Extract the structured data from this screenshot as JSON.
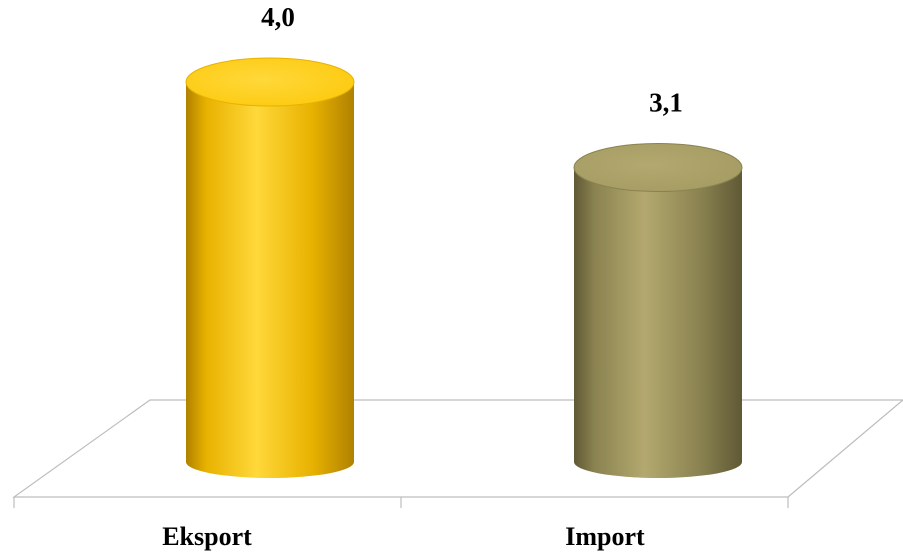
{
  "chart_data": {
    "type": "bar",
    "style": "3d-cylinder",
    "categories": [
      "Eksport",
      "Import"
    ],
    "values": [
      4.0,
      3.1
    ],
    "value_labels": [
      "4,0",
      "3,1"
    ],
    "title": "",
    "xlabel": "",
    "ylabel": "",
    "ylim": [
      0,
      4.0
    ],
    "grid": false,
    "legend": "none",
    "colors": {
      "Eksport": {
        "side": "#e8b200",
        "light": "#ffd83a",
        "dark": "#b08100",
        "top": "#fcc80a"
      },
      "Import": {
        "side": "#8a8250",
        "light": "#b3a96f",
        "dark": "#5f5935",
        "top": "#a39a62"
      }
    },
    "floor_color": "#bdbdbd"
  }
}
